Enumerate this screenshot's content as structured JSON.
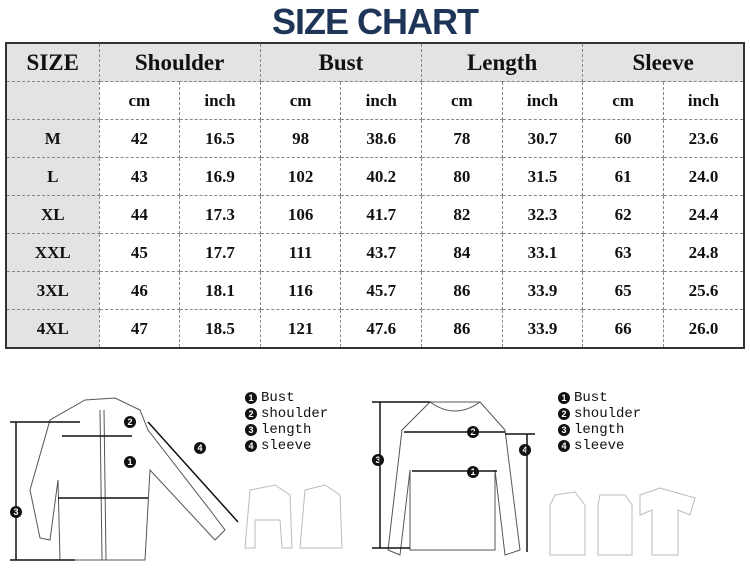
{
  "title": "SIZE CHART",
  "table": {
    "size_header": "SIZE",
    "groups": [
      "Shoulder",
      "Bust",
      "Length",
      "Sleeve"
    ],
    "units": [
      "cm",
      "inch",
      "cm",
      "inch",
      "cm",
      "inch",
      "cm",
      "inch"
    ],
    "rows": [
      {
        "size": "M",
        "values": [
          "42",
          "16.5",
          "98",
          "38.6",
          "78",
          "30.7",
          "60",
          "23.6"
        ]
      },
      {
        "size": "L",
        "values": [
          "43",
          "16.9",
          "102",
          "40.2",
          "80",
          "31.5",
          "61",
          "24.0"
        ]
      },
      {
        "size": "XL",
        "values": [
          "44",
          "17.3",
          "106",
          "41.7",
          "82",
          "32.3",
          "62",
          "24.4"
        ]
      },
      {
        "size": "XXL",
        "values": [
          "45",
          "17.7",
          "111",
          "43.7",
          "84",
          "33.1",
          "63",
          "24.8"
        ]
      },
      {
        "size": "3XL",
        "values": [
          "46",
          "18.1",
          "116",
          "45.7",
          "86",
          "33.9",
          "65",
          "25.6"
        ]
      },
      {
        "size": "4XL",
        "values": [
          "47",
          "18.5",
          "121",
          "47.6",
          "86",
          "33.9",
          "66",
          "26.0"
        ]
      }
    ]
  },
  "legend": [
    {
      "n": "1",
      "label": "Bust"
    },
    {
      "n": "2",
      "label": "shoulder"
    },
    {
      "n": "3",
      "label": "length"
    },
    {
      "n": "4",
      "label": "sleeve"
    }
  ]
}
